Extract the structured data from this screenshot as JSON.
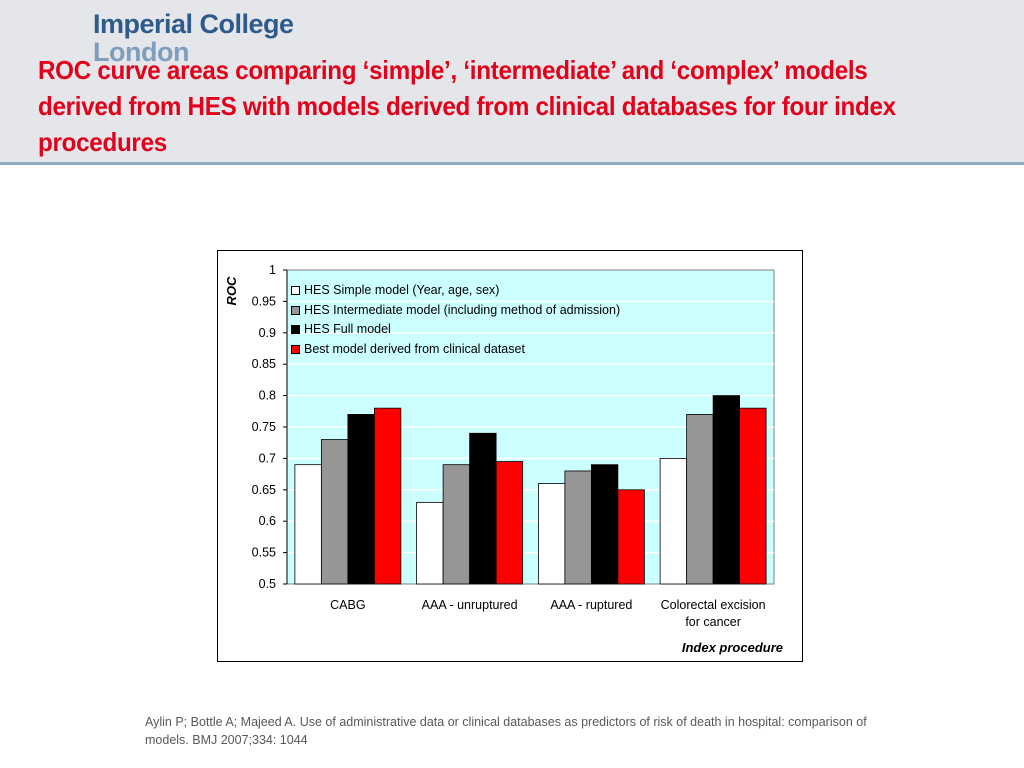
{
  "header": {
    "logo_line1": "Imperial College",
    "logo_line2": "London",
    "title": "ROC curve areas comparing ‘simple’, ‘intermediate’ and ‘complex’ models derived from HES with models derived from clinical databases for four index procedures"
  },
  "chart_data": {
    "type": "bar",
    "categories": [
      "CABG",
      "AAA - unruptured",
      "AAA - ruptured",
      "Colorectal excision for cancer"
    ],
    "series": [
      {
        "name": "HES Simple model (Year, age, sex)",
        "color": "#ffffff",
        "values": [
          0.69,
          0.63,
          0.66,
          0.7
        ]
      },
      {
        "name": "HES Intermediate model (including method of admission)",
        "color": "#969696",
        "values": [
          0.73,
          0.69,
          0.68,
          0.77
        ]
      },
      {
        "name": "HES Full model",
        "color": "#000000",
        "values": [
          0.77,
          0.74,
          0.69,
          0.8
        ]
      },
      {
        "name": "Best model derived from clinical dataset",
        "color": "#ff0000",
        "values": [
          0.78,
          0.695,
          0.65,
          0.78
        ]
      }
    ],
    "ylabel": "ROC",
    "xlabel": "Index procedure",
    "ylim": [
      0.5,
      1
    ],
    "yticks": [
      "1",
      "0.95",
      "0.9",
      "0.85",
      "0.8",
      "0.75",
      "0.7",
      "0.65",
      "0.6",
      "0.55",
      "0.5"
    ],
    "grid": true,
    "plot_background": "#ccffff",
    "legend_position": "top-left"
  },
  "citation": "Aylin P; Bottle A; Majeed A. Use of administrative data or clinical databases as predictors of risk of death in hospital: comparison of models. BMJ 2007;334: 1044"
}
